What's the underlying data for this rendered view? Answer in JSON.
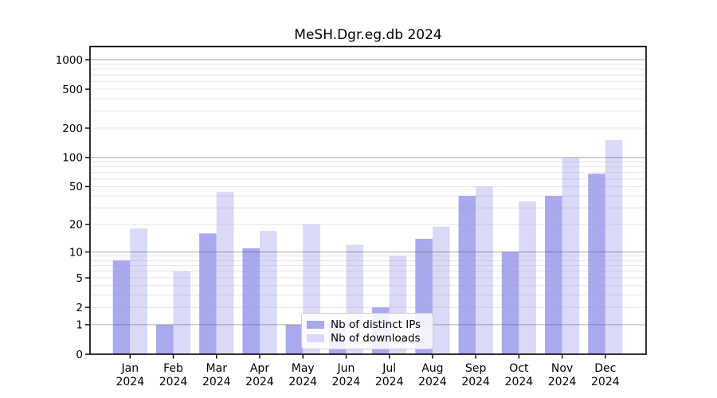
{
  "figure": {
    "background": "#ffffff",
    "spine_color": "#000000"
  },
  "chart_data": {
    "type": "bar",
    "title": "MeSH.Dgr.eg.db 2024",
    "xlabel": "",
    "ylabel": "",
    "x_categories": [
      "Jan",
      "Feb",
      "Mar",
      "Apr",
      "May",
      "Jun",
      "Jul",
      "Aug",
      "Sep",
      "Oct",
      "Nov",
      "Dec"
    ],
    "x_year_label": "2024",
    "series": [
      {
        "name": "Nb of distinct IPs",
        "color": "#a9a9ef",
        "values": [
          8,
          1,
          16,
          11,
          1,
          1,
          2,
          14,
          40,
          10,
          40,
          68
        ]
      },
      {
        "name": "Nb of downloads",
        "color": "#d9d9f8",
        "values": [
          18,
          6,
          44,
          17,
          20,
          12,
          9,
          19,
          50,
          35,
          99,
          151
        ]
      }
    ],
    "y_axis": {
      "scale": "log1p",
      "tick_values": [
        0,
        1,
        2,
        5,
        10,
        20,
        50,
        100,
        200,
        500,
        1000
      ],
      "major_grid_values": [
        1,
        10,
        100,
        1000
      ],
      "minor_grid_values": [
        2,
        3,
        4,
        5,
        6,
        7,
        8,
        9,
        20,
        30,
        40,
        50,
        60,
        70,
        80,
        90,
        200,
        300,
        400,
        500,
        600,
        700,
        800,
        900
      ],
      "range": [
        0,
        1360
      ]
    },
    "grid": true,
    "legend_position": "lower-center",
    "colors": {
      "major_grid": "rgba(80,80,80,0.45)",
      "minor_grid": "rgba(160,160,160,0.28)",
      "tick_label": "#000000"
    }
  }
}
